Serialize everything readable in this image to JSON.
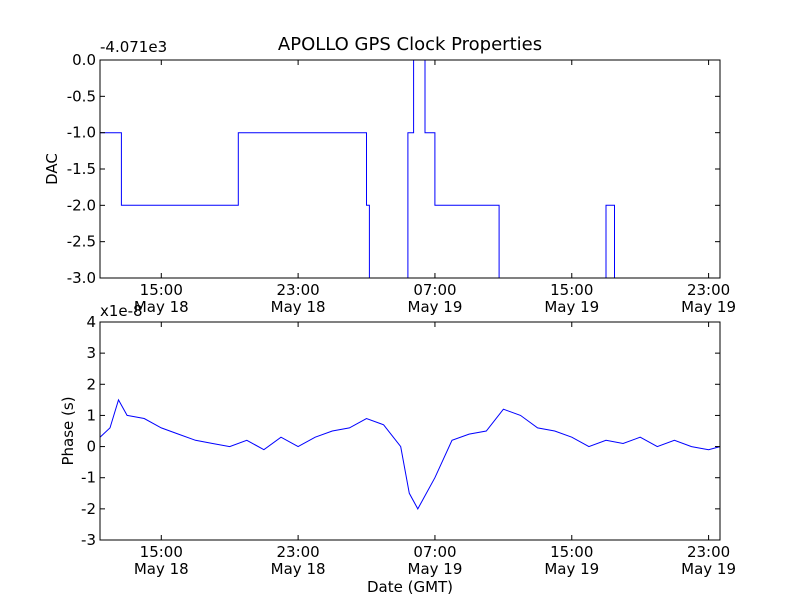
{
  "chart_data": {
    "type": "line",
    "title": "APOLLO GPS Clock Properties",
    "xlabel": "Date (GMT)",
    "x_ticks": [
      "15:00",
      "23:00",
      "07:00",
      "15:00",
      "23:00"
    ],
    "x_tick_dates": [
      "May 18",
      "May 18",
      "May 19",
      "May 19",
      "May 19"
    ],
    "x_range": [
      "May 18 11:25",
      "May 19 23:40"
    ],
    "grid": false,
    "line_color": "#0000ff",
    "panels": [
      {
        "name": "dac",
        "ylabel": "DAC",
        "offset_text": "-4.071e3",
        "ylim": [
          -3.0,
          0.0
        ],
        "y_ticks": [
          "0.0",
          "-0.5",
          "-1.0",
          "-1.5",
          "-2.0",
          "-2.5",
          "-3.0"
        ],
        "y_tick_values": [
          0.0,
          -0.5,
          -1.0,
          -1.5,
          -2.0,
          -2.5,
          -3.0
        ],
        "series": [
          {
            "x": [
              "May 18 11:25",
              "May 18 12:40",
              "May 18 19:30",
              "May 19 03:00",
              "May 19 03:10",
              "May 19 05:25",
              "May 19 05:45",
              "May 19 06:25",
              "May 19 07:00",
              "May 19 10:30",
              "May 19 10:45",
              "May 19 17:00",
              "May 19 17:30",
              "May 19 23:40"
            ],
            "values": [
              -1.0,
              -2.0,
              -1.0,
              -2.0,
              -3.0,
              -1.0,
              0.0,
              -1.0,
              -2.0,
              -2.0,
              -3.0,
              -2.0,
              -3.0,
              -2.0
            ]
          }
        ]
      },
      {
        "name": "phase",
        "ylabel": "Phase (s)",
        "offset_text": "x1e-8",
        "ylim": [
          -3,
          4
        ],
        "y_ticks": [
          "4",
          "3",
          "2",
          "1",
          "0",
          "-1",
          "-2",
          "-3"
        ],
        "y_tick_values": [
          4,
          3,
          2,
          1,
          0,
          -1,
          -2,
          -3
        ],
        "series": [
          {
            "x": [
              "May 18 11:25",
              "May 18 12:00",
              "May 18 12:30",
              "May 18 13:00",
              "May 18 14:00",
              "May 18 15:00",
              "May 18 16:00",
              "May 18 17:00",
              "May 18 18:00",
              "May 18 19:00",
              "May 18 20:00",
              "May 18 21:00",
              "May 18 22:00",
              "May 18 23:00",
              "May 19 00:00",
              "May 19 01:00",
              "May 19 02:00",
              "May 19 03:00",
              "May 19 04:00",
              "May 19 05:00",
              "May 19 05:30",
              "May 19 06:00",
              "May 19 07:00",
              "May 19 08:00",
              "May 19 09:00",
              "May 19 10:00",
              "May 19 11:00",
              "May 19 12:00",
              "May 19 13:00",
              "May 19 14:00",
              "May 19 15:00",
              "May 19 16:00",
              "May 19 17:00",
              "May 19 18:00",
              "May 19 19:00",
              "May 19 20:00",
              "May 19 21:00",
              "May 19 22:00",
              "May 19 23:00",
              "May 19 23:40"
            ],
            "values": [
              0.3,
              0.6,
              1.5,
              1.0,
              0.9,
              0.6,
              0.4,
              0.2,
              0.1,
              0.0,
              0.2,
              -0.1,
              0.3,
              0.0,
              0.3,
              0.5,
              0.6,
              0.9,
              0.7,
              0.0,
              -1.5,
              -2.0,
              -1.0,
              0.2,
              0.4,
              0.5,
              1.2,
              1.0,
              0.6,
              0.5,
              0.3,
              0.0,
              0.2,
              0.1,
              0.3,
              0.0,
              0.2,
              0.0,
              -0.1,
              0.0
            ]
          }
        ]
      }
    ]
  }
}
